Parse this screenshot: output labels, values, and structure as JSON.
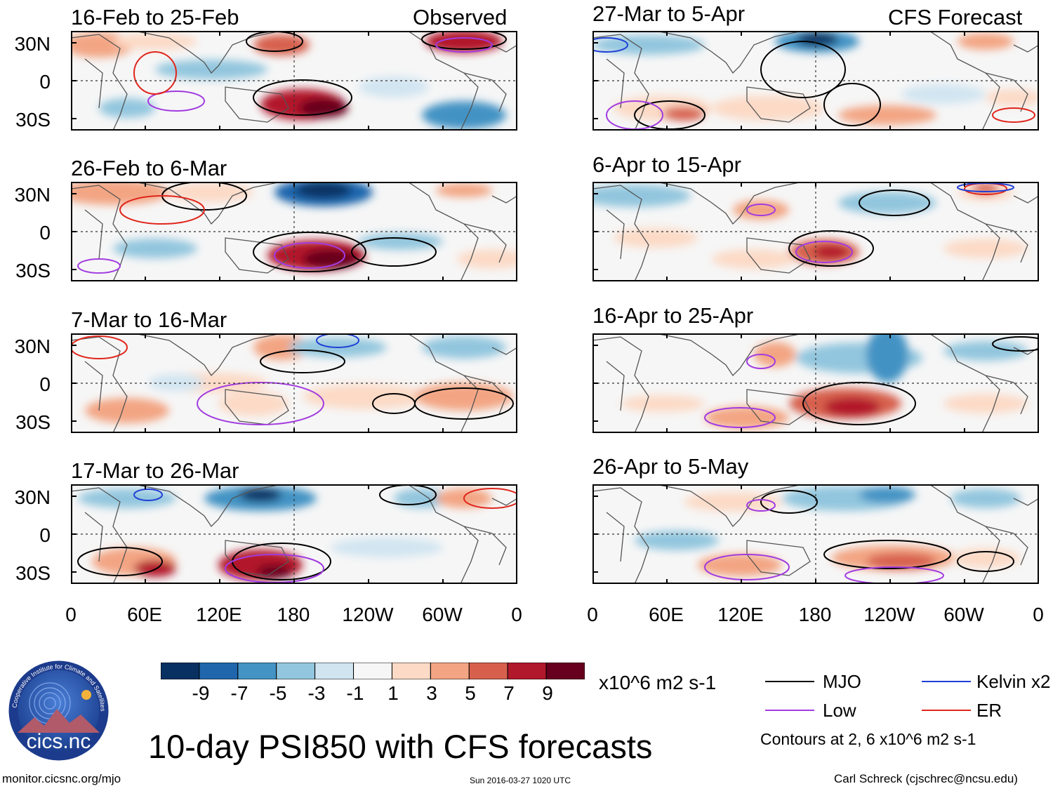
{
  "panels": [
    {
      "title": "16-Feb to 25-Feb",
      "tag": "Observed",
      "col": 0,
      "row": 0
    },
    {
      "title": "26-Feb to 6-Mar",
      "tag": "",
      "col": 0,
      "row": 1
    },
    {
      "title": "7-Mar to 16-Mar",
      "tag": "",
      "col": 0,
      "row": 2
    },
    {
      "title": "17-Mar to 26-Mar",
      "tag": "",
      "col": 0,
      "row": 3
    },
    {
      "title": "27-Mar to 5-Apr",
      "tag": "CFS Forecast",
      "col": 1,
      "row": 0
    },
    {
      "title": "6-Apr to 15-Apr",
      "tag": "",
      "col": 1,
      "row": 1
    },
    {
      "title": "16-Apr to 25-Apr",
      "tag": "",
      "col": 1,
      "row": 2
    },
    {
      "title": "26-Apr to 5-May",
      "tag": "",
      "col": 1,
      "row": 3
    }
  ],
  "y_ticks": [
    "30N",
    "0",
    "30S"
  ],
  "x_ticks": [
    "0",
    "60E",
    "120E",
    "180",
    "120W",
    "60W",
    "0"
  ],
  "colorbar": {
    "labels": [
      "-9",
      "-7",
      "-5",
      "-3",
      "-1",
      "1",
      "3",
      "5",
      "7",
      "9"
    ],
    "colors": [
      "#083162",
      "#1f66ad",
      "#4393c4",
      "#92c6de",
      "#d1e5f1",
      "#f6f6f6",
      "#fcdac6",
      "#f3a583",
      "#d7604d",
      "#b2182b",
      "#67001f"
    ],
    "units": "x10^6 m2 s-1"
  },
  "legend": {
    "items": [
      {
        "label": "MJO",
        "color": "#000000"
      },
      {
        "label": "Kelvin x2",
        "color": "#1f3fd6"
      },
      {
        "label": "Low",
        "color": "#a23be0"
      },
      {
        "label": "ER",
        "color": "#e0251b"
      }
    ],
    "note": "Contours at 2, 6 x10^6 m2 s-1"
  },
  "logo_text": "cics.nc",
  "logo_ring_text": "Cooperative Institute for Climate and Satellites",
  "main_title": "10-day PSI850 with CFS forecasts",
  "footer": {
    "left": "monitor.cicsnc.org/mjo",
    "center": "Sun 2016-03-27 1020 UTC",
    "right": "Carl Schreck (cjschrec@ncsu.edu)"
  }
}
